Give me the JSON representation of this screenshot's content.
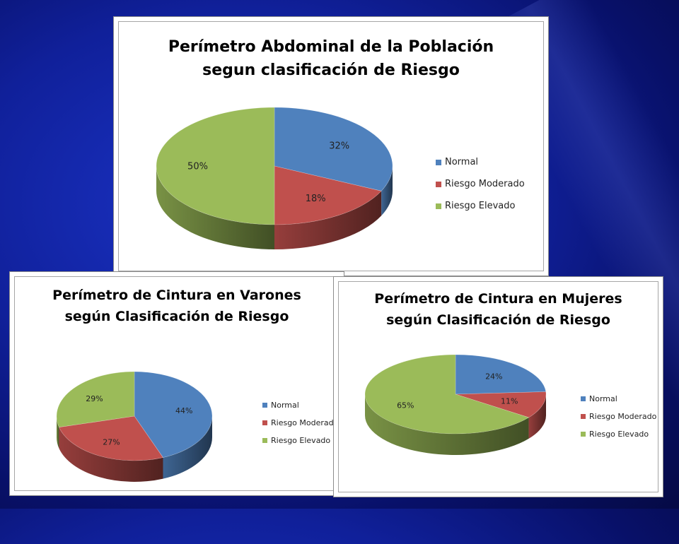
{
  "colors": {
    "normal": "#4f81bd",
    "moderado": "#c0504d",
    "elevado": "#9bbb59"
  },
  "chart_data": [
    {
      "type": "pie",
      "title": [
        "Perímetro Abdominal de la Población",
        "segun clasificación de Riesgo"
      ],
      "categories": [
        "Normal",
        "Riesgo Moderado",
        "Riesgo Elevado"
      ],
      "values": [
        32,
        18,
        50
      ],
      "labels": [
        "32%",
        "18%",
        "50%"
      ],
      "legend": "right",
      "style": "3d"
    },
    {
      "type": "pie",
      "title": [
        "Perímetro de Cintura en Varones",
        "según Clasificación de Riesgo"
      ],
      "categories": [
        "Normal",
        "Riesgo Moderado",
        "Riesgo Elevado"
      ],
      "values": [
        44,
        27,
        29
      ],
      "labels": [
        "44%",
        "27%",
        "29%"
      ],
      "legend": "right",
      "style": "3d"
    },
    {
      "type": "pie",
      "title": [
        "Perímetro de Cintura en Mujeres",
        "según Clasificación de Riesgo"
      ],
      "categories": [
        "Normal",
        "Riesgo Moderado",
        "Riesgo Elevado"
      ],
      "values": [
        24,
        11,
        65
      ],
      "labels": [
        "24%",
        "11%",
        "65%"
      ],
      "legend": "right",
      "style": "3d"
    }
  ]
}
